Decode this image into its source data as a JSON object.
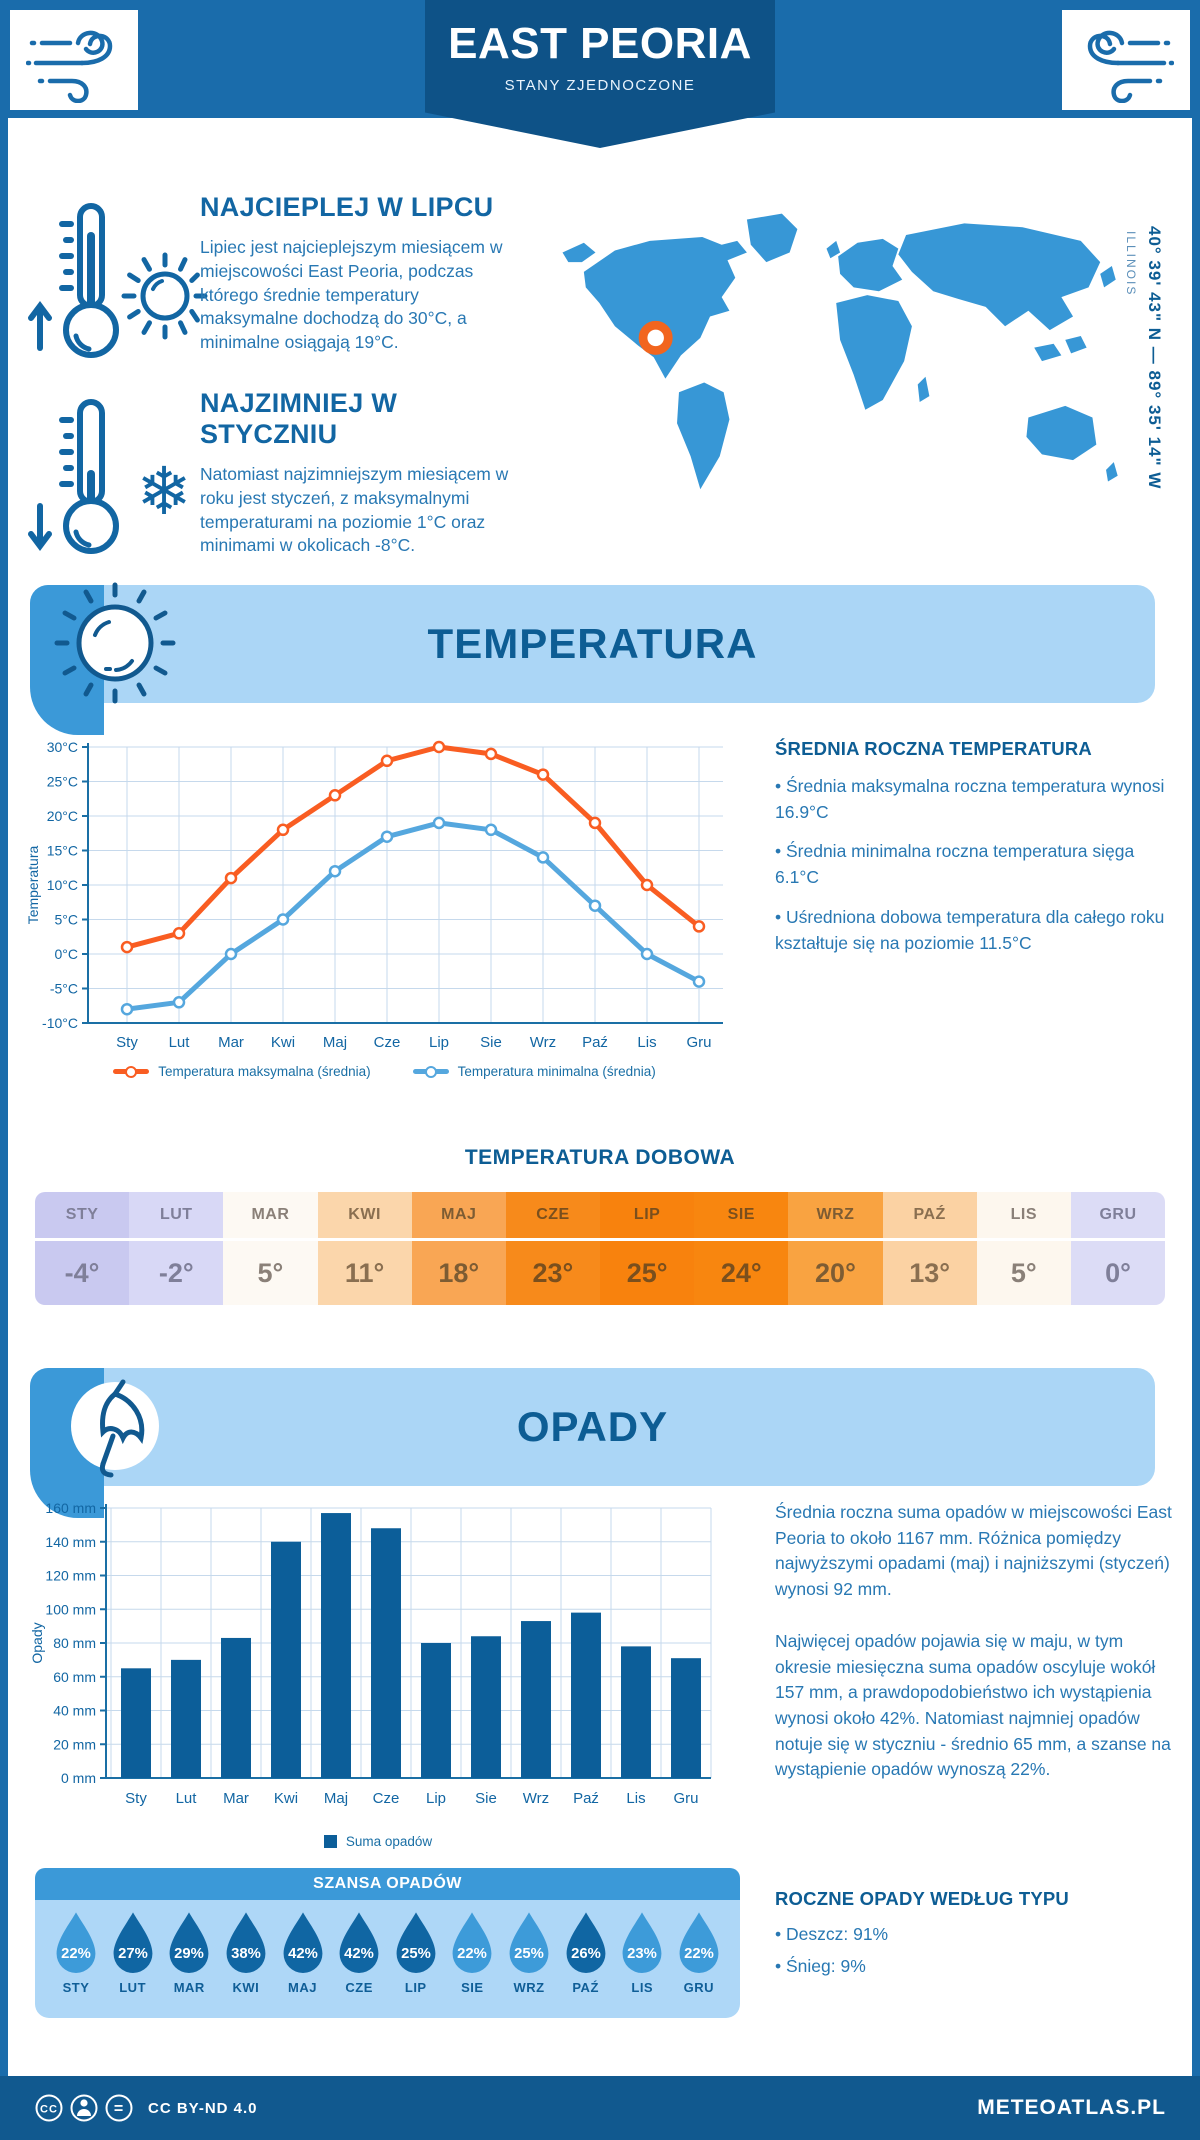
{
  "page": {
    "header": {
      "title": "EAST PEORIA",
      "subtitle": "STANY ZJEDNOCZONE"
    },
    "intro": {
      "warmest": {
        "heading": "NAJCIEPLEJ W LIPCU",
        "text": "Lipiec jest najcieplejszym miesiącem w miejscowości East Peoria, podczas którego średnie temperatury maksymalne dochodzą do 30°C, a minimalne osiągają 19°C."
      },
      "coldest": {
        "heading": "NAJZIMNIEJ W STYCZNIU",
        "text": "Natomiast najzimniejszym miesiącem w roku jest styczeń, z maksymalnymi temperaturami na poziomie 1°C oraz minimami w okolicach -8°C."
      },
      "location": {
        "coordinates": "40° 39' 43\" N — 89° 35' 14\" W",
        "region": "ILLINOIS"
      }
    },
    "temperature": {
      "section_title": "TEMPERATURA",
      "summary_title": "ŚREDNIA ROCZNA TEMPERATURA",
      "bullets": [
        "• Średnia maksymalna roczna temperatura wynosi 16.9°C",
        "• Średnia minimalna roczna temperatura sięga 6.1°C",
        "• Uśredniona dobowa temperatura dla całego roku kształtuje się na poziomie 11.5°C"
      ],
      "daily_title": "TEMPERATURA DOBOWA",
      "daily_cells": [
        {
          "month": "STY",
          "value": "-4°",
          "bg": "#c9c9f0",
          "fg": "#7f7f99"
        },
        {
          "month": "LUT",
          "value": "-2°",
          "bg": "#d8d8f6",
          "fg": "#7f7f99"
        },
        {
          "month": "MAR",
          "value": "5°",
          "bg": "#fdf9f3",
          "fg": "#8a8078"
        },
        {
          "month": "KWI",
          "value": "11°",
          "bg": "#fbd6ab",
          "fg": "#8a6f50"
        },
        {
          "month": "MAJ",
          "value": "18°",
          "bg": "#f9a654",
          "fg": "#7d5c33"
        },
        {
          "month": "CZE",
          "value": "23°",
          "bg": "#f78a1b",
          "fg": "#7a4f1d"
        },
        {
          "month": "LIP",
          "value": "25°",
          "bg": "#f8820d",
          "fg": "#7a4f1d"
        },
        {
          "month": "SIE",
          "value": "24°",
          "bg": "#f8860f",
          "fg": "#7a4f1d"
        },
        {
          "month": "WRZ",
          "value": "20°",
          "bg": "#f9a341",
          "fg": "#7d5c33"
        },
        {
          "month": "PAŹ",
          "value": "13°",
          "bg": "#fbd2a3",
          "fg": "#8a6f50"
        },
        {
          "month": "LIS",
          "value": "5°",
          "bg": "#fdf7ee",
          "fg": "#8a8078"
        },
        {
          "month": "GRU",
          "value": "0°",
          "bg": "#dcdcf6",
          "fg": "#7f7f99"
        }
      ]
    },
    "precipitation": {
      "section_title": "OPADY",
      "paragraphs": [
        "Średnia roczna suma opadów w miejscowości East Peoria to około 1167 mm. Różnica pomiędzy najwyższymi opadami (maj) i najniższymi (styczeń) wynosi 92 mm.",
        "Najwięcej opadów pojawia się w maju, w tym okresie miesięczna suma opadów oscyluje wokół 157 mm, a prawdopodobieństwo ich wystąpienia wynosi około 42%. Natomiast najmniej opadów notuje się w styczniu - średnio 65 mm, a szanse na wystąpienie opadów wynoszą 22%."
      ],
      "chance_title": "SZANSA OPADÓW",
      "chance": [
        {
          "month": "STY",
          "value": "22%",
          "shade": "light"
        },
        {
          "month": "LUT",
          "value": "27%",
          "shade": "dark"
        },
        {
          "month": "MAR",
          "value": "29%",
          "shade": "dark"
        },
        {
          "month": "KWI",
          "value": "38%",
          "shade": "dark"
        },
        {
          "month": "MAJ",
          "value": "42%",
          "shade": "dark"
        },
        {
          "month": "CZE",
          "value": "42%",
          "shade": "dark"
        },
        {
          "month": "LIP",
          "value": "25%",
          "shade": "dark"
        },
        {
          "month": "SIE",
          "value": "22%",
          "shade": "light"
        },
        {
          "month": "WRZ",
          "value": "25%",
          "shade": "light"
        },
        {
          "month": "PAŹ",
          "value": "26%",
          "shade": "dark"
        },
        {
          "month": "LIS",
          "value": "23%",
          "shade": "light"
        },
        {
          "month": "GRU",
          "value": "22%",
          "shade": "light"
        }
      ],
      "type_title": "ROCZNE OPADY WEDŁUG TYPU",
      "type_bullets": [
        "• Deszcz: 91%",
        "• Śnieg: 9%"
      ]
    },
    "footer": {
      "license": "CC BY-ND 4.0",
      "brand": "METEOATLAS.PL"
    }
  },
  "chart_data": [
    {
      "type": "line",
      "title": "",
      "categories": [
        "Sty",
        "Lut",
        "Mar",
        "Kwi",
        "Maj",
        "Cze",
        "Lip",
        "Sie",
        "Wrz",
        "Paź",
        "Lis",
        "Gru"
      ],
      "series": [
        {
          "name": "Temperatura maksymalna (średnia)",
          "color": "#f95d22",
          "values": [
            1,
            3,
            11,
            18,
            23,
            28,
            30,
            29,
            26,
            19,
            10,
            4
          ]
        },
        {
          "name": "Temperatura minimalna (średnia)",
          "color": "#55a7de",
          "values": [
            -8,
            -7,
            0,
            5,
            12,
            17,
            19,
            18,
            14,
            7,
            0,
            -4
          ]
        }
      ],
      "xlabel": "",
      "ylabel": "Temperatura",
      "ylim": [
        -10,
        30
      ],
      "ytick_step": 5,
      "ytick_suffix": "°C",
      "grid": true,
      "legend_position": "bottom"
    },
    {
      "type": "bar",
      "title": "",
      "categories": [
        "Sty",
        "Lut",
        "Mar",
        "Kwi",
        "Maj",
        "Cze",
        "Lip",
        "Sie",
        "Wrz",
        "Paź",
        "Lis",
        "Gru"
      ],
      "series": [
        {
          "name": "Suma opadów",
          "color": "#0c5e99",
          "values": [
            65,
            70,
            83,
            140,
            157,
            148,
            80,
            84,
            93,
            98,
            78,
            71
          ]
        }
      ],
      "xlabel": "",
      "ylabel": "Opady",
      "ylim": [
        0,
        160
      ],
      "ytick_step": 20,
      "ytick_suffix": " mm",
      "grid": true,
      "legend_position": "bottom"
    }
  ],
  "colors": {
    "header_bg": "#1a6cab",
    "ribbon_bg": "#0e5287",
    "footer_bg": "#11598f",
    "banner_light": "#abd6f6",
    "banner_medium": "#3b99d8",
    "heading_navy": "#0d5d94",
    "accent_blue": "#1266a3",
    "body_blue": "#2878b3",
    "grid": "#c6d9ec",
    "axis": "#1a6fa5",
    "axis_text": "#1266a3",
    "map_blue": "#3797d6",
    "marker_orange": "#f2651e",
    "drop_dark": "#1066a3",
    "drop_light": "#3d9bd9"
  }
}
